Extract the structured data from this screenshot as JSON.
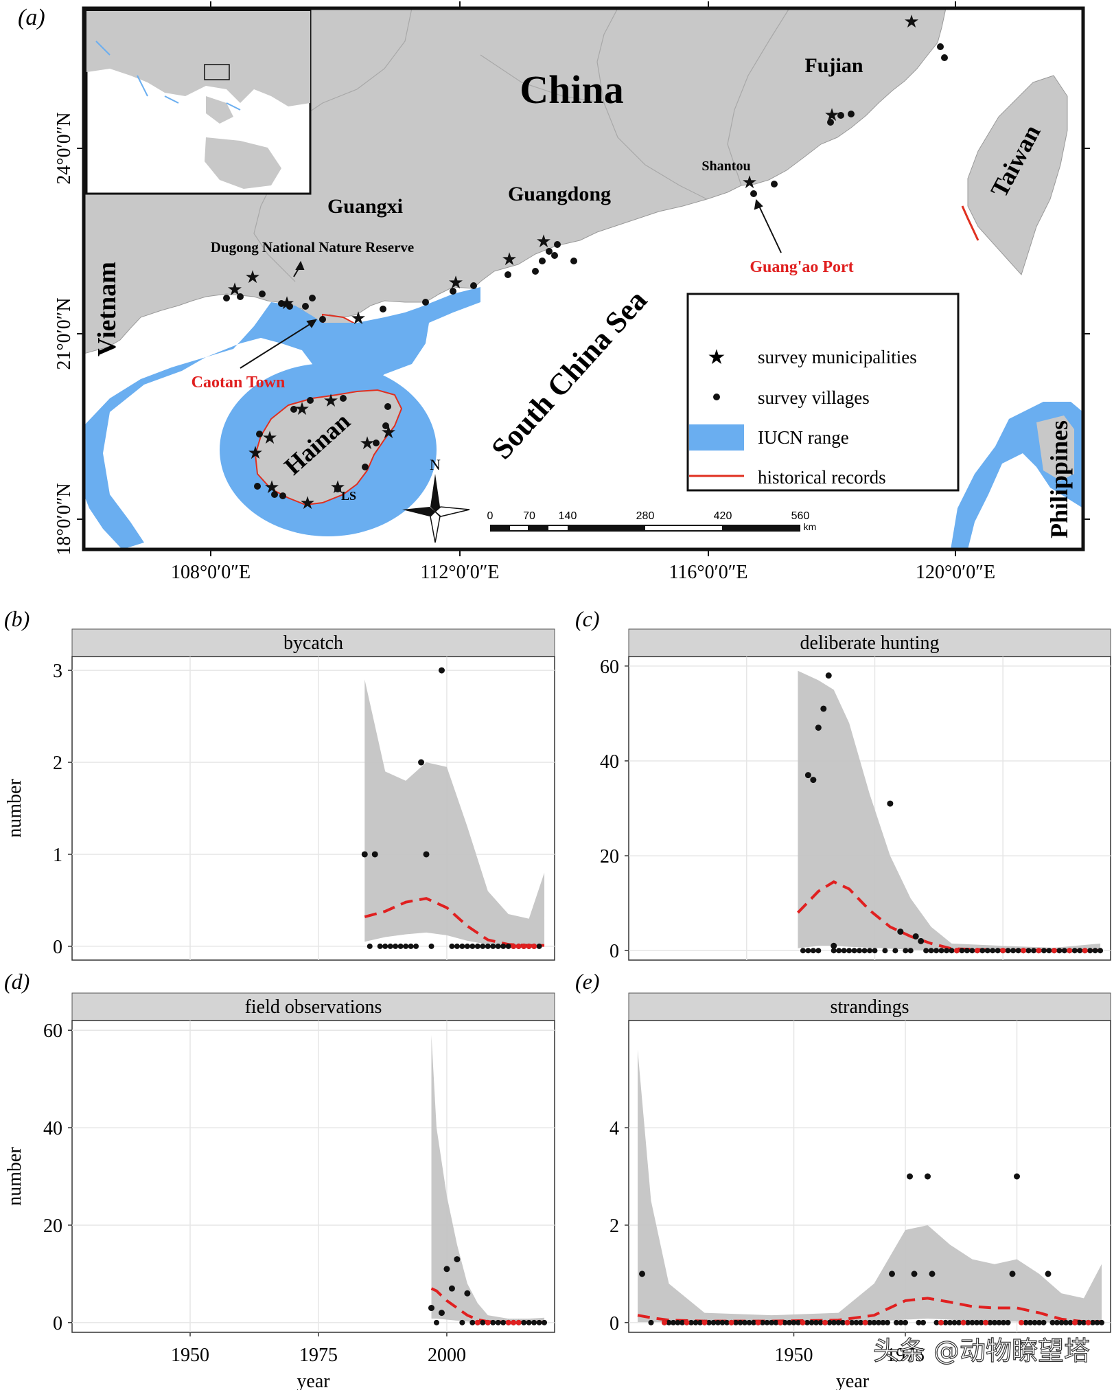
{
  "panel_a": {
    "letter": "(a)",
    "labels": {
      "china": "China",
      "fujian": "Fujian",
      "guangxi": "Guangxi",
      "guangdong": "Guangdong",
      "vietnam": "Vietnam",
      "taiwan": "Taiwan",
      "philippines": "Philippines",
      "hainan": "Hainan",
      "south_china_sea": "South China Sea",
      "dugong_reserve": "Dugong National Nature Reserve",
      "shantou": "Shantou",
      "guangao_port": "Guang'ao Port",
      "caotan_town": "Caotan Town",
      "ls": "LS",
      "north": "N"
    },
    "lat_ticks": [
      "24°0′0″N",
      "21°0′0″N",
      "18°0′0″N"
    ],
    "lon_ticks": [
      "108°0′0″E",
      "112°0′0″E",
      "116°0′0″E",
      "120°0′0″E"
    ],
    "scale_labels": [
      "0",
      "70",
      "140",
      "280",
      "420",
      "560"
    ],
    "scale_unit": "km",
    "legend": [
      {
        "label": "survey municipalities",
        "symbol": "star"
      },
      {
        "label": "survey villages",
        "symbol": "dot"
      },
      {
        "label": "IUCN range",
        "symbol": "blue-box"
      },
      {
        "label": "historical records",
        "symbol": "red-line"
      }
    ],
    "colors": {
      "land": "#c8c8c8",
      "iucn": "#6aaef0",
      "records": "#e03020",
      "annotation_red": "#e02020"
    }
  },
  "chart_data": [
    {
      "type": "scatter",
      "panel": "(b)",
      "title": "bycatch",
      "xlabel": "",
      "ylabel": "number",
      "xlim": [
        1927,
        2021
      ],
      "ylim": [
        -0.15,
        3.15
      ],
      "yticks": [
        "0",
        "1",
        "2",
        "3"
      ],
      "x_points": [
        1984,
        1986,
        1995,
        1996,
        1999
      ],
      "y_points": [
        1,
        1,
        2,
        1,
        3
      ],
      "zeros_black": [
        1985,
        1987,
        1988,
        1989,
        1990,
        1991,
        1992,
        1993,
        1994,
        1997,
        2001,
        2002,
        2003,
        2004,
        2005,
        2006,
        2007,
        2008,
        2009,
        2010,
        2011,
        2012,
        2013,
        2014,
        2015,
        2016,
        2017,
        2018
      ],
      "zeros_red": [
        2013,
        2014,
        2015,
        2016,
        2017
      ],
      "trend_x": [
        1984,
        1988,
        1992,
        1996,
        2000,
        2004,
        2008,
        2012,
        2016,
        2019
      ],
      "trend_y": [
        0.32,
        0.38,
        0.48,
        0.52,
        0.42,
        0.22,
        0.07,
        0.02,
        0.01,
        0.01
      ],
      "ci_upper": [
        2.9,
        1.9,
        1.8,
        2.0,
        1.95,
        1.3,
        0.6,
        0.35,
        0.3,
        0.8
      ],
      "ci_lower": [
        0.05,
        0.1,
        0.13,
        0.15,
        0.12,
        0.06,
        0.02,
        0.0,
        0.0,
        0.0
      ]
    },
    {
      "type": "scatter",
      "panel": "(c)",
      "title": "deliberate hunting",
      "xlabel": "",
      "ylabel": "",
      "xlim": [
        1927,
        2021
      ],
      "ylim": [
        -2,
        62
      ],
      "yticks": [
        "0",
        "20",
        "40",
        "60"
      ],
      "x_points": [
        1962,
        1963,
        1964,
        1965,
        1966,
        1967,
        1978,
        1980,
        1983,
        1984
      ],
      "y_points": [
        37,
        36,
        47,
        51,
        58,
        1,
        31,
        4,
        3,
        2
      ],
      "zeros_black": [
        1961,
        1962,
        1963,
        1964,
        1967,
        1968,
        1969,
        1970,
        1971,
        1972,
        1973,
        1974,
        1975,
        1977,
        1979,
        1981,
        1982,
        1985,
        1986,
        1987,
        1988,
        1989,
        1990,
        1991,
        1992,
        1993,
        1994,
        1995,
        1996,
        1997,
        1998,
        1999,
        2000,
        2001,
        2002,
        2003,
        2004,
        2005,
        2006,
        2007,
        2008,
        2009,
        2010,
        2011,
        2012,
        2013,
        2014,
        2015,
        2016,
        2017,
        2018,
        2019
      ],
      "zeros_red": [
        1991,
        1995,
        2000,
        2004,
        2007,
        2010,
        2013,
        2016
      ],
      "trend_x": [
        1960,
        1964,
        1967,
        1970,
        1974,
        1978,
        1982,
        1986,
        1990,
        2000,
        2010,
        2019
      ],
      "trend_y": [
        8,
        12.5,
        14.5,
        13,
        8.5,
        5,
        3,
        1.5,
        0.4,
        0.1,
        0.05,
        0.05
      ],
      "ci_upper": [
        59,
        57,
        55,
        48,
        33,
        20,
        11,
        5,
        1.5,
        1,
        0.6,
        1.5
      ],
      "ci_lower": [
        0.5,
        1,
        1,
        0.8,
        0.6,
        0.4,
        0.2,
        0.1,
        0,
        0,
        0,
        0
      ]
    },
    {
      "type": "scatter",
      "panel": "(d)",
      "title": "field observations",
      "xlabel": "year",
      "ylabel": "number",
      "xlim": [
        1927,
        2021
      ],
      "ylim": [
        -2,
        62
      ],
      "yticks": [
        "0",
        "20",
        "40",
        "60"
      ],
      "xticks": [
        "1950",
        "1975",
        "2000"
      ],
      "x_points": [
        1997,
        1999,
        2000,
        2001,
        2002,
        2004
      ],
      "y_points": [
        3,
        2,
        11,
        7,
        13,
        6
      ],
      "zeros_black": [
        1998,
        2003,
        2005,
        2006,
        2007,
        2008,
        2009,
        2010,
        2011,
        2012,
        2013,
        2014,
        2015,
        2016,
        2017,
        2018,
        2019
      ],
      "zeros_red": [
        2006,
        2008,
        2012,
        2013,
        2014
      ],
      "trend_x": [
        1997,
        1998,
        2000,
        2002,
        2004,
        2006,
        2008,
        2012,
        2016,
        2019
      ],
      "trend_y": [
        7,
        6.5,
        4.5,
        3,
        1.5,
        0.6,
        0.2,
        0.1,
        0.05,
        0.05
      ],
      "ci_upper": [
        59,
        40,
        26,
        16,
        8,
        4,
        1.5,
        0.8,
        0.8,
        1
      ],
      "ci_lower": [
        0.8,
        0.8,
        0.6,
        0.4,
        0.2,
        0.1,
        0,
        0,
        0,
        0
      ]
    },
    {
      "type": "scatter",
      "panel": "(e)",
      "title": "strandings",
      "xlabel": "year",
      "ylabel": "",
      "xlim": [
        1913,
        2021
      ],
      "ylim": [
        -0.2,
        6.2
      ],
      "yticks": [
        "0",
        "2",
        "4"
      ],
      "xticks": [
        "1950",
        "1975"
      ],
      "x_points": [
        1916,
        1972,
        1976,
        1977,
        1980,
        1981,
        1999,
        2000,
        2007
      ],
      "y_points": [
        1,
        1,
        3,
        1,
        3,
        1,
        1,
        3,
        1
      ],
      "zeros_black": [
        1918,
        1921,
        1922,
        1923,
        1924,
        1925,
        1926,
        1927,
        1928,
        1929,
        1930,
        1931,
        1932,
        1933,
        1934,
        1935,
        1936,
        1937,
        1938,
        1939,
        1940,
        1941,
        1942,
        1943,
        1944,
        1945,
        1946,
        1947,
        1948,
        1949,
        1950,
        1951,
        1952,
        1953,
        1954,
        1955,
        1956,
        1957,
        1958,
        1959,
        1960,
        1961,
        1962,
        1963,
        1964,
        1965,
        1966,
        1967,
        1968,
        1969,
        1970,
        1971,
        1973,
        1974,
        1975,
        1978,
        1979,
        1982,
        1983,
        1984,
        1985,
        1986,
        1987,
        1988,
        1989,
        1990,
        1991,
        1992,
        1993,
        1994,
        1995,
        1996,
        1997,
        1998,
        2002,
        2003,
        2004,
        2005,
        2006,
        2008,
        2009,
        2010,
        2011,
        2012,
        2013,
        2014,
        2015,
        2016,
        2017,
        2018,
        2019
      ],
      "zeros_red": [
        1921,
        1926,
        1930,
        1936,
        1942,
        1947,
        1952,
        1957,
        1962,
        1966,
        1983,
        1988,
        1993,
        2001,
        2013,
        2016
      ],
      "trend_x": [
        1915,
        1918,
        1922,
        1930,
        1945,
        1960,
        1968,
        1975,
        1980,
        1985,
        1990,
        1995,
        2000,
        2005,
        2010,
        2015,
        2019
      ],
      "trend_y": [
        0.15,
        0.1,
        0.05,
        0.03,
        0.03,
        0.05,
        0.15,
        0.45,
        0.5,
        0.42,
        0.33,
        0.3,
        0.3,
        0.2,
        0.07,
        0.02,
        0.02
      ],
      "ci_upper": [
        5.6,
        2.5,
        0.8,
        0.2,
        0.15,
        0.2,
        0.8,
        1.9,
        2.0,
        1.6,
        1.3,
        1.2,
        1.3,
        1.0,
        0.6,
        0.5,
        1.2
      ],
      "ci_lower": [
        0.01,
        0.01,
        0.01,
        0.01,
        0.0,
        0.0,
        0.02,
        0.06,
        0.08,
        0.06,
        0.03,
        0.02,
        0.02,
        0.01,
        0.0,
        0.0,
        0.0
      ]
    }
  ],
  "watermark": "头条 @动物瞭望塔"
}
